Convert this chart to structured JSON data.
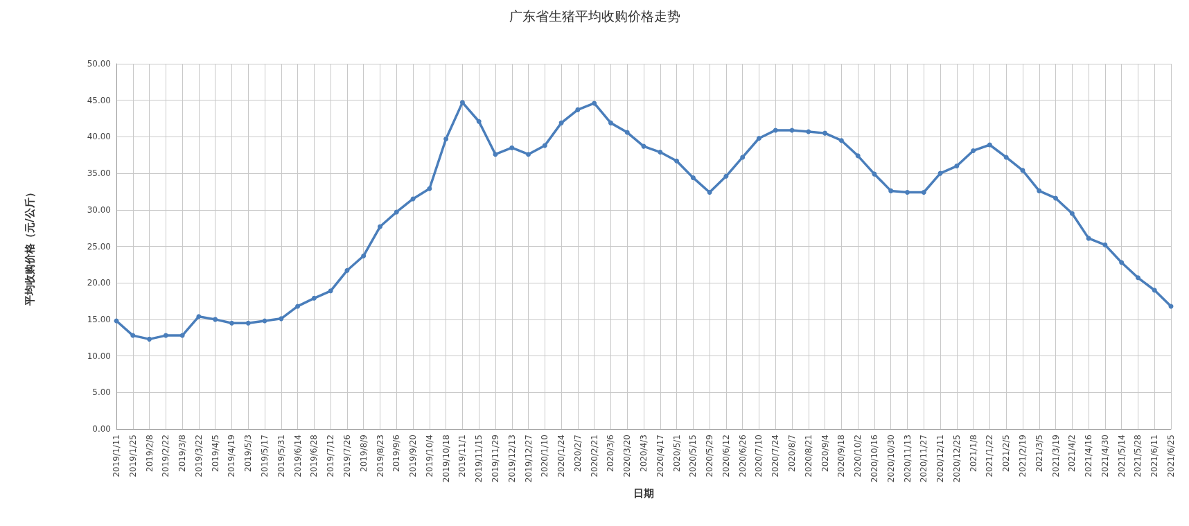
{
  "chart_data": {
    "type": "line",
    "title": "广东省生猪平均收购价格走势",
    "xlabel": "日期",
    "ylabel": "平均收购价格（元/公斤）",
    "categories": [
      "2019/1/11",
      "2019/1/25",
      "2019/2/8",
      "2019/2/22",
      "2019/3/8",
      "2019/3/22",
      "2019/4/5",
      "2019/4/19",
      "2019/5/3",
      "2019/5/17",
      "2019/5/31",
      "2019/6/14",
      "2019/6/28",
      "2019/7/12",
      "2019/7/26",
      "2019/8/9",
      "2019/8/23",
      "2019/9/6",
      "2019/9/20",
      "2019/10/4",
      "2019/10/18",
      "2019/11/1",
      "2019/11/15",
      "2019/11/29",
      "2019/12/13",
      "2019/12/27",
      "2020/1/10",
      "2020/1/24",
      "2020/2/7",
      "2020/2/21",
      "2020/3/6",
      "2020/3/20",
      "2020/4/3",
      "2020/4/17",
      "2020/5/1",
      "2020/5/15",
      "2020/5/29",
      "2020/6/12",
      "2020/6/26",
      "2020/7/10",
      "2020/7/24",
      "2020/8/7",
      "2020/8/21",
      "2020/9/4",
      "2020/9/18",
      "2020/10/2",
      "2020/10/16",
      "2020/10/30",
      "2020/11/13",
      "2020/11/27",
      "2020/12/11",
      "2020/12/25",
      "2021/1/8",
      "2021/1/22",
      "2021/2/5",
      "2021/2/19",
      "2021/3/5",
      "2021/3/19",
      "2021/4/2",
      "2021/4/16",
      "2021/4/30",
      "2021/5/14",
      "2021/5/28",
      "2021/6/11",
      "2021/6/25"
    ],
    "series": [
      {
        "color": "#4a7ebb",
        "values": [
          14.8,
          12.8,
          12.3,
          12.8,
          12.8,
          15.4,
          15.0,
          14.5,
          14.5,
          14.8,
          15.1,
          16.8,
          17.9,
          18.9,
          21.7,
          23.7,
          27.7,
          29.7,
          31.5,
          32.9,
          39.7,
          44.7,
          42.1,
          37.6,
          38.5,
          37.6,
          38.8,
          41.9,
          43.7,
          44.6,
          41.9,
          40.6,
          38.7,
          37.9,
          36.7,
          34.4,
          32.4,
          34.6,
          37.2,
          39.8,
          40.9,
          40.9,
          40.7,
          40.5,
          39.5,
          37.4,
          34.9,
          32.6,
          32.4,
          32.4,
          35.0,
          36.0,
          38.1,
          38.9,
          37.2,
          35.4,
          32.6,
          31.6,
          29.5,
          26.1,
          25.2,
          22.8,
          20.7,
          19.0,
          16.8
        ]
      }
    ],
    "ylim": [
      0,
      50
    ],
    "yticks": [
      {
        "value": 0,
        "label": "0.00"
      },
      {
        "value": 5,
        "label": "5.00"
      },
      {
        "value": 10,
        "label": "10.00"
      },
      {
        "value": 15,
        "label": "15.00"
      },
      {
        "value": 20,
        "label": "20.00"
      },
      {
        "value": 25,
        "label": "25.00"
      },
      {
        "value": 30,
        "label": "30.00"
      },
      {
        "value": 35,
        "label": "35.00"
      },
      {
        "value": 40,
        "label": "40.00"
      },
      {
        "value": 45,
        "label": "45.00"
      },
      {
        "value": 50,
        "label": "50.00"
      }
    ],
    "grid": true,
    "marker": "circle",
    "line_style": "solid"
  }
}
